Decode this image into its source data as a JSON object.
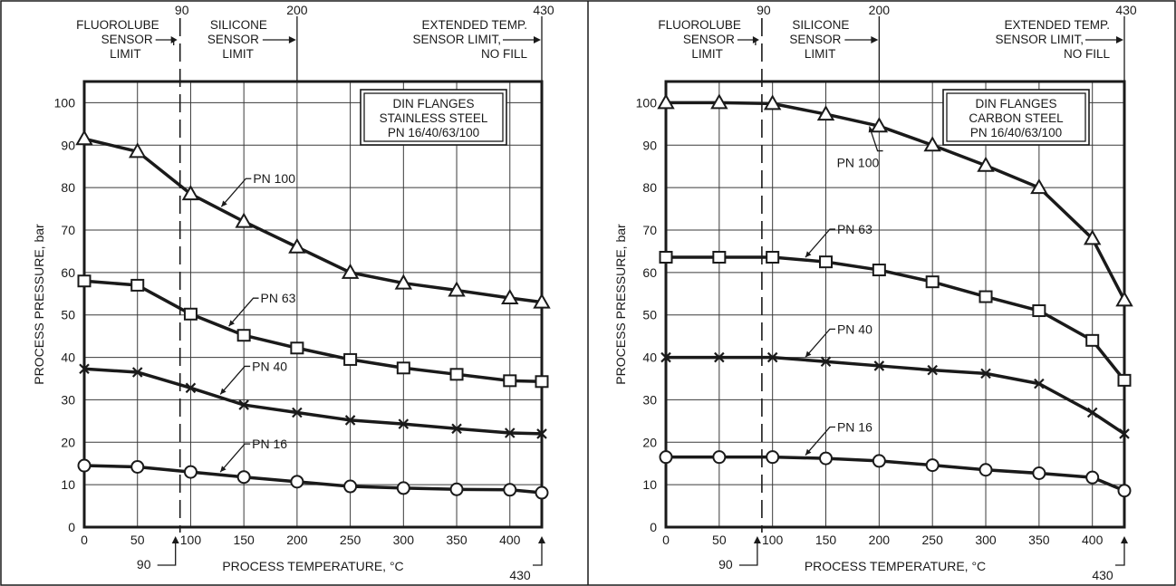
{
  "chart_data": [
    {
      "type": "line",
      "title": "",
      "xlabel": "PROCESS TEMPERATURE, °C",
      "ylabel": "PROCESS PRESSURE, bar",
      "xlim": [
        0,
        430
      ],
      "ylim": [
        0,
        105
      ],
      "x_ticks": [
        0,
        50,
        100,
        150,
        200,
        250,
        300,
        350,
        400
      ],
      "y_ticks": [
        0,
        10,
        20,
        30,
        40,
        50,
        60,
        70,
        80,
        90,
        100
      ],
      "grid": true,
      "legend_box": [
        "DIN FLANGES",
        "STAINLESS STEEL",
        "PN 16/40/63/100"
      ],
      "x": [
        0,
        50,
        100,
        150,
        200,
        250,
        300,
        350,
        400,
        430
      ],
      "series": [
        {
          "name": "PN 100",
          "marker": "triangle",
          "values": [
            91.5,
            88.5,
            78.5,
            72,
            66,
            60,
            57.5,
            55.8,
            54,
            53
          ]
        },
        {
          "name": "PN 63",
          "marker": "square",
          "values": [
            58,
            57,
            50.2,
            45.2,
            42.2,
            39.5,
            37.5,
            36,
            34.5,
            34.3
          ]
        },
        {
          "name": "PN 40",
          "marker": "x",
          "values": [
            37.3,
            36.5,
            32.8,
            28.8,
            27,
            25.2,
            24.3,
            23.2,
            22.2,
            22
          ]
        },
        {
          "name": "PN 16",
          "marker": "circle",
          "values": [
            14.5,
            14.2,
            13,
            11.8,
            10.7,
            9.6,
            9.2,
            8.9,
            8.8,
            8.1
          ]
        }
      ],
      "series_label_points": [
        {
          "series": "PN 100",
          "x": 128
        },
        {
          "series": "PN 63",
          "x": 135
        },
        {
          "series": "PN 40",
          "x": 127
        },
        {
          "series": "PN 16",
          "x": 127
        }
      ],
      "annotations": {
        "fluorolube": {
          "lines": [
            "FLUOROLUBE",
            "SENSOR",
            "LIMIT"
          ],
          "value": "90",
          "x": 90
        },
        "silicone": {
          "lines": [
            "SILICONE",
            "SENSOR",
            "LIMIT"
          ],
          "value": "200",
          "x": 200
        },
        "extended": {
          "lines": [
            "EXTENDED TEMP.",
            "SENSOR LIMIT,",
            "NO FILL"
          ],
          "value": "430",
          "x": 430
        },
        "bottom_left": "90",
        "bottom_right": "430"
      }
    },
    {
      "type": "line",
      "title": "",
      "xlabel": "PROCESS TEMPERATURE, °C",
      "ylabel": "PROCESS PRESSURE, bar",
      "xlim": [
        0,
        430
      ],
      "ylim": [
        0,
        105
      ],
      "x_ticks": [
        0,
        50,
        100,
        150,
        200,
        250,
        300,
        350,
        400
      ],
      "y_ticks": [
        0,
        10,
        20,
        30,
        40,
        50,
        60,
        70,
        80,
        90,
        100
      ],
      "grid": true,
      "legend_box": [
        "DIN FLANGES",
        "CARBON STEEL",
        "PN 16/40/63/100"
      ],
      "x": [
        0,
        50,
        100,
        150,
        200,
        250,
        300,
        350,
        400,
        430
      ],
      "series": [
        {
          "name": "PN 100",
          "marker": "triangle",
          "values": [
            100,
            100,
            99.8,
            97.3,
            94.5,
            90,
            85.2,
            80,
            68,
            53.5
          ]
        },
        {
          "name": "PN 63",
          "marker": "square",
          "values": [
            63.6,
            63.6,
            63.6,
            62.5,
            60.6,
            57.8,
            54.3,
            51,
            44,
            34.6
          ]
        },
        {
          "name": "PN 40",
          "marker": "x",
          "values": [
            40,
            40,
            40,
            39,
            38,
            37,
            36.2,
            33.8,
            27,
            22
          ]
        },
        {
          "name": "PN 16",
          "marker": "circle",
          "values": [
            16.5,
            16.5,
            16.5,
            16.2,
            15.6,
            14.6,
            13.5,
            12.7,
            11.7,
            8.6
          ]
        }
      ],
      "series_label_points": [
        {
          "series": "PN 100",
          "x": 190
        },
        {
          "series": "PN 63",
          "x": 130
        },
        {
          "series": "PN 40",
          "x": 130
        },
        {
          "series": "PN 16",
          "x": 130
        }
      ],
      "annotations": {
        "fluorolube": {
          "lines": [
            "FLUOROLUBE",
            "SENSOR",
            "LIMIT"
          ],
          "value": "90",
          "x": 90
        },
        "silicone": {
          "lines": [
            "SILICONE",
            "SENSOR",
            "LIMIT"
          ],
          "value": "200",
          "x": 200
        },
        "extended": {
          "lines": [
            "EXTENDED TEMP.",
            "SENSOR LIMIT,",
            "NO FILL"
          ],
          "value": "430",
          "x": 430
        },
        "bottom_left": "90",
        "bottom_right": "430"
      }
    }
  ]
}
